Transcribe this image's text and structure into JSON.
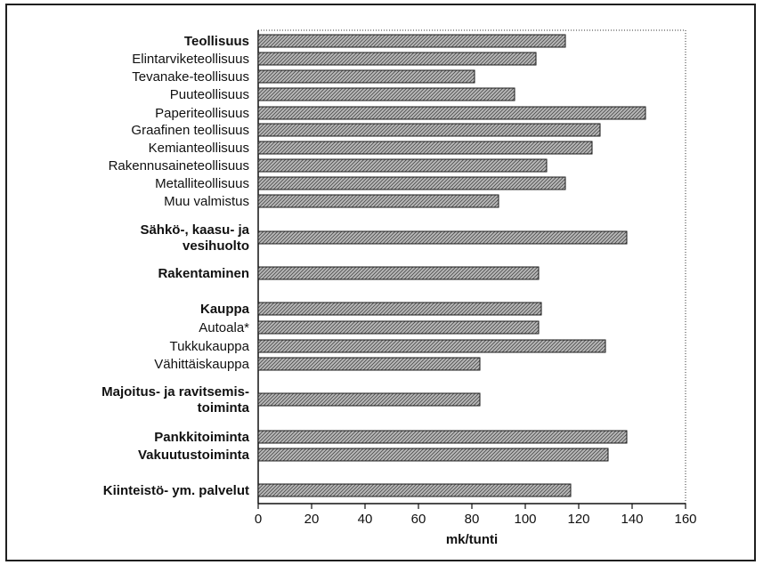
{
  "chart_data": {
    "type": "bar",
    "orientation": "horizontal",
    "xlabel": "mk/tunti",
    "xlim": [
      0,
      160
    ],
    "xticks": [
      0,
      20,
      40,
      60,
      80,
      100,
      120,
      140,
      160
    ],
    "grid": false,
    "categories": [
      {
        "label_lines": [
          "Teollisuus"
        ],
        "bold": true,
        "value": 115
      },
      {
        "label_lines": [
          "Elintarviketeollisuus"
        ],
        "bold": false,
        "value": 104
      },
      {
        "label_lines": [
          "Tevanake-teollisuus"
        ],
        "bold": false,
        "value": 81
      },
      {
        "label_lines": [
          "Puuteollisuus"
        ],
        "bold": false,
        "value": 96
      },
      {
        "label_lines": [
          "Paperiteollisuus"
        ],
        "bold": false,
        "value": 145
      },
      {
        "label_lines": [
          "Graafinen teollisuus"
        ],
        "bold": false,
        "value": 128
      },
      {
        "label_lines": [
          "Kemianteollisuus"
        ],
        "bold": false,
        "value": 125
      },
      {
        "label_lines": [
          "Rakennusaineteollisuus"
        ],
        "bold": false,
        "value": 108
      },
      {
        "label_lines": [
          "Metalliteollisuus"
        ],
        "bold": false,
        "value": 115
      },
      {
        "label_lines": [
          "Muu valmistus"
        ],
        "bold": false,
        "value": 90
      },
      {
        "label_lines": [
          "Sähkö-, kaasu- ja",
          "vesihuolto"
        ],
        "bold": true,
        "value": 138
      },
      {
        "label_lines": [
          "Rakentaminen"
        ],
        "bold": true,
        "value": 105
      },
      {
        "label_lines": [
          "Kauppa"
        ],
        "bold": true,
        "value": 106
      },
      {
        "label_lines": [
          "Autoala*"
        ],
        "bold": false,
        "value": 105
      },
      {
        "label_lines": [
          "Tukkukauppa"
        ],
        "bold": false,
        "value": 130
      },
      {
        "label_lines": [
          "Vähittäiskauppa"
        ],
        "bold": false,
        "value": 83
      },
      {
        "label_lines": [
          "Majoitus- ja ravitsemis-",
          "toiminta"
        ],
        "bold": true,
        "value": 83
      },
      {
        "label_lines": [
          "Pankkitoiminta"
        ],
        "bold": true,
        "value": 138
      },
      {
        "label_lines": [
          "Vakuutustoiminta"
        ],
        "bold": true,
        "value": 131
      },
      {
        "label_lines": [
          "Kiinteistö- ym. palvelut"
        ],
        "bold": true,
        "value": 117
      }
    ],
    "bar_fill": "#9a9a9a",
    "bar_stroke": "#1a1a1a"
  }
}
